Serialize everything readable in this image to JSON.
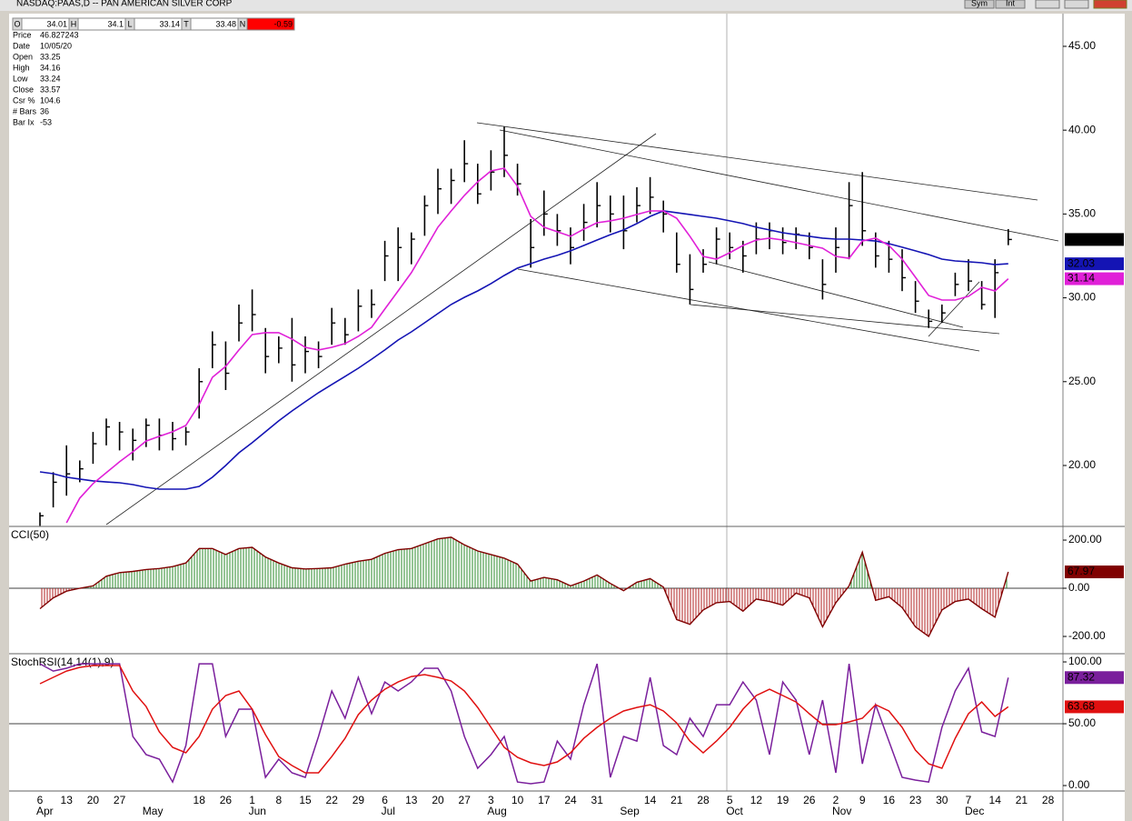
{
  "window": {
    "title": "NASDAQ:PAAS,D -- PAN AMERICAN SILVER CORP",
    "buttons": [
      "Sym",
      "Int"
    ]
  },
  "quote_bar": [
    {
      "label": "O",
      "value": 34.01
    },
    {
      "label": "H",
      "value": 34.1
    },
    {
      "label": "L",
      "value": 33.14
    },
    {
      "label": "T",
      "value": 33.48
    },
    {
      "label": "N",
      "value": -0.59,
      "color": "#ff0000"
    }
  ],
  "info": [
    {
      "label": "Price",
      "value": 46.827243
    },
    {
      "label": "Date",
      "value": "10/05/20"
    },
    {
      "label": "Open",
      "value": 33.25
    },
    {
      "label": "High",
      "value": 34.16
    },
    {
      "label": "Low",
      "value": 33.24
    },
    {
      "label": "Close",
      "value": 33.57
    },
    {
      "label": "Csr %",
      "value": 104.6
    },
    {
      "label": "# Bars",
      "value": 36
    },
    {
      "label": "Bar Ix",
      "value": -53
    }
  ],
  "chart_data": [
    {
      "type": "ohlc",
      "color": "#000000",
      "high": [
        17.2,
        19.6,
        21.2,
        20.3,
        22.0,
        22.8,
        22.6,
        22.2,
        22.8,
        22.8,
        22.6,
        22.3,
        25.8,
        28.0,
        27.4,
        29.6,
        30.5,
        28.2,
        27.7,
        28.8,
        27.7,
        27.4,
        29.4,
        28.8,
        30.5,
        30.5,
        33.4,
        34.2,
        33.9,
        36.1,
        37.7,
        37.7,
        39.4,
        38.0,
        38.8,
        40.2,
        38.0,
        34.7,
        36.4,
        35.0,
        34.2,
        35.6,
        36.9,
        36.1,
        36.1,
        36.6,
        37.2,
        35.8,
        33.9,
        32.6,
        32.9,
        34.2,
        33.9,
        33.4,
        34.5,
        34.5,
        34.2,
        34.2,
        33.9,
        32.3,
        34.2,
        36.9,
        37.5,
        33.9,
        33.4,
        32.9,
        31.0,
        29.3,
        29.6,
        31.5,
        32.3,
        31.0,
        32.3,
        34.1,
        null,
        null,
        null,
        null
      ],
      "low": [
        16.4,
        17.5,
        18.2,
        19.0,
        20.1,
        21.2,
        20.9,
        20.3,
        21.1,
        20.9,
        20.9,
        21.2,
        22.8,
        25.8,
        24.5,
        27.4,
        28.0,
        25.5,
        26.1,
        25.0,
        25.5,
        25.8,
        27.2,
        27.2,
        28.0,
        28.8,
        31.0,
        31.0,
        32.0,
        33.7,
        35.0,
        35.6,
        36.9,
        35.6,
        36.4,
        37.2,
        36.1,
        31.8,
        33.7,
        33.1,
        32.0,
        33.4,
        34.2,
        33.9,
        32.9,
        34.5,
        35.0,
        33.9,
        31.5,
        29.6,
        31.5,
        32.0,
        32.3,
        31.5,
        32.6,
        32.9,
        32.6,
        32.9,
        32.3,
        29.9,
        31.5,
        32.3,
        33.1,
        31.8,
        31.5,
        30.4,
        29.1,
        28.2,
        28.5,
        30.1,
        30.4,
        29.3,
        28.8,
        33.14,
        null,
        null,
        null,
        null
      ],
      "close": [
        17.0,
        19.0,
        19.5,
        19.8,
        21.3,
        22.3,
        22.0,
        21.5,
        22.4,
        21.8,
        21.6,
        22.0,
        25.0,
        27.2,
        25.5,
        28.5,
        29.0,
        26.5,
        27.0,
        26.0,
        26.8,
        26.5,
        28.5,
        27.8,
        29.5,
        29.6,
        32.5,
        33.0,
        33.5,
        35.5,
        36.5,
        37.0,
        38.0,
        36.2,
        37.5,
        38.5,
        36.8,
        33.0,
        35.0,
        34.0,
        33.0,
        34.5,
        35.5,
        35.0,
        34.0,
        35.5,
        36.0,
        35.0,
        32.0,
        30.5,
        32.0,
        33.5,
        33.0,
        32.5,
        33.5,
        34.0,
        33.3,
        33.8,
        33.0,
        30.8,
        33.0,
        35.5,
        34.0,
        32.5,
        32.3,
        31.2,
        29.8,
        28.6,
        29.1,
        30.8,
        31.0,
        29.6,
        31.5,
        33.48,
        null,
        null,
        null,
        null
      ],
      "lines": [
        {
          "color": "#1414b4",
          "values": [
            19.62,
            19.51,
            19.3,
            19.19,
            19.08,
            19.02,
            18.97,
            18.86,
            18.7,
            18.59,
            18.59,
            18.59,
            18.75,
            19.3,
            20.0,
            20.76,
            21.36,
            22.01,
            22.66,
            23.25,
            23.8,
            24.34,
            24.83,
            25.31,
            25.8,
            26.34,
            26.89,
            27.48,
            27.97,
            28.51,
            29.06,
            29.6,
            30.03,
            30.41,
            30.85,
            31.33,
            31.77,
            32.04,
            32.31,
            32.53,
            32.8,
            33.12,
            33.45,
            33.77,
            34.05,
            34.43,
            34.86,
            35.18,
            35.08,
            34.97,
            34.86,
            34.75,
            34.59,
            34.43,
            34.21,
            34.05,
            33.88,
            33.77,
            33.67,
            33.56,
            33.5,
            33.5,
            33.45,
            33.39,
            33.23,
            33.02,
            32.8,
            32.58,
            32.31,
            32.2,
            32.15,
            32.09,
            31.98,
            32.03,
            null,
            null,
            null,
            null
          ]
        },
        {
          "color": "#e020d8",
          "values": [
            null,
            null,
            16.58,
            18.05,
            18.92,
            19.57,
            20.22,
            20.81,
            21.46,
            21.74,
            22.01,
            22.39,
            23.63,
            25.26,
            25.91,
            26.89,
            27.81,
            27.92,
            27.92,
            27.54,
            27.05,
            26.89,
            27.05,
            27.27,
            27.7,
            28.24,
            29.33,
            30.41,
            31.5,
            32.85,
            34.21,
            35.18,
            36.11,
            36.92,
            37.57,
            37.73,
            36.65,
            34.86,
            34.21,
            33.94,
            33.67,
            34.1,
            34.48,
            34.59,
            34.75,
            34.97,
            35.18,
            35.18,
            34.75,
            33.67,
            32.47,
            32.31,
            32.69,
            33.12,
            33.45,
            33.56,
            33.45,
            33.29,
            33.12,
            32.96,
            32.47,
            32.36,
            33.39,
            33.56,
            33.12,
            32.31,
            31.23,
            30.14,
            29.87,
            29.87,
            30.09,
            30.63,
            30.41,
            31.14,
            null,
            null,
            null,
            null
          ]
        }
      ],
      "ylim": [
        16.42,
        46.95
      ],
      "yticks": [
        {
          "value": 20,
          "label": "20.00"
        },
        {
          "value": 25,
          "label": "25.00"
        },
        {
          "value": 30,
          "label": "30.00"
        },
        {
          "value": 35,
          "label": "35.00"
        },
        {
          "value": 40,
          "label": "40.00"
        },
        {
          "value": 45,
          "label": "45.00"
        }
      ]
    },
    {
      "type": "area",
      "title": "CCI(50)",
      "pos_color": "#2e8b2e",
      "neg_color": "#b22222",
      "line_color": "#800000",
      "values": [
        -85,
        -40,
        -12,
        0,
        10,
        50,
        65,
        70,
        78,
        82,
        90,
        105,
        165,
        165,
        140,
        165,
        170,
        130,
        105,
        85,
        80,
        82,
        85,
        100,
        112,
        120,
        145,
        160,
        165,
        185,
        205,
        212,
        180,
        155,
        140,
        125,
        100,
        30,
        45,
        35,
        10,
        30,
        55,
        20,
        -10,
        25,
        40,
        5,
        -130,
        -150,
        -90,
        -60,
        -55,
        -95,
        -45,
        -55,
        -70,
        -20,
        -40,
        -160,
        -60,
        10,
        150,
        -50,
        -35,
        -80,
        -160,
        -200,
        -90,
        -55,
        -45,
        -85,
        -120,
        67.97,
        null,
        null,
        null,
        null
      ],
      "ylim": [
        -268,
        253
      ],
      "hline": 0,
      "yticks": [
        {
          "value": -200,
          "label": "-200.00"
        },
        {
          "value": 0,
          "label": "0.00"
        },
        {
          "value": 200,
          "label": "200.00"
        }
      ]
    },
    {
      "type": "line",
      "title": "StochRSI(14,14(1),9)",
      "categories": [
        "6",
        null,
        "13",
        null,
        "20",
        null,
        "27",
        null,
        null,
        null,
        null,
        null,
        "18",
        null,
        "26",
        null,
        "1",
        null,
        "8",
        null,
        "15",
        null,
        "22",
        null,
        "29",
        null,
        "6",
        null,
        "13",
        null,
        "20",
        null,
        "27",
        null,
        "3",
        null,
        "10",
        null,
        "17",
        null,
        "24",
        null,
        "31",
        null,
        null,
        null,
        "14",
        null,
        "21",
        null,
        "28",
        null,
        "5",
        null,
        "12",
        null,
        "19",
        null,
        "26",
        null,
        "2",
        null,
        "9",
        null,
        "16",
        null,
        "23",
        null,
        "30",
        null,
        "7",
        null,
        "14",
        null,
        "21",
        null,
        "28",
        null
      ],
      "months": [
        "Apr",
        null,
        null,
        null,
        null,
        null,
        null,
        null,
        "May",
        null,
        null,
        null,
        null,
        null,
        null,
        null,
        "Jun",
        null,
        null,
        null,
        null,
        null,
        null,
        null,
        null,
        null,
        "Jul",
        null,
        null,
        null,
        null,
        null,
        null,
        null,
        "Aug",
        null,
        null,
        null,
        null,
        null,
        null,
        null,
        null,
        null,
        "Sep",
        null,
        null,
        null,
        null,
        null,
        null,
        null,
        "Oct",
        null,
        null,
        null,
        null,
        null,
        null,
        null,
        "Nov",
        null,
        null,
        null,
        null,
        null,
        null,
        null,
        null,
        null,
        "Dec",
        null,
        null,
        null,
        null,
        null,
        null,
        null
      ],
      "series": [
        {
          "color": "#7a1f9c",
          "values": [
            98.5,
            92.6,
            94.9,
            98.5,
            98.5,
            98.5,
            98.5,
            39.7,
            25,
            21.3,
            2.9,
            32.4,
            98.5,
            98.5,
            39.7,
            61.8,
            61.8,
            6.6,
            21.3,
            10.3,
            6.6,
            39.7,
            76.5,
            54.4,
            87.5,
            58.1,
            83.8,
            76.5,
            83.8,
            94.9,
            94.9,
            76.5,
            39.7,
            14.0,
            25,
            39.7,
            2.9,
            1.5,
            2.9,
            36.0,
            21.3,
            65.4,
            98.5,
            6.6,
            39.7,
            36.0,
            87.5,
            32.4,
            25,
            54.4,
            39.7,
            65.4,
            65.4,
            83.8,
            69.1,
            25,
            83.8,
            69.1,
            25,
            69.1,
            10.3,
            98.5,
            17.6,
            65.4,
            36.0,
            6.6,
            4.4,
            2.9,
            47.1,
            76.5,
            94.9,
            43.4,
            39.7,
            87.32,
            null,
            null,
            null,
            null
          ]
        },
        {
          "color": "#e01010",
          "values": [
            82.4,
            87.5,
            92.6,
            95.6,
            97.1,
            97.1,
            97.1,
            76.5,
            64.0,
            43.4,
            30.9,
            26.5,
            39.7,
            61.8,
            72.8,
            76.5,
            61.8,
            41.2,
            23.5,
            16.2,
            10.3,
            10.3,
            23.5,
            38.2,
            57.4,
            69.1,
            77.9,
            83.8,
            88.2,
            89.7,
            87.5,
            84.6,
            76.5,
            63.2,
            47.1,
            30.9,
            22.8,
            18.4,
            16.2,
            19.1,
            26.5,
            38.2,
            47.1,
            54.4,
            60.3,
            63.2,
            65.4,
            60.3,
            50.7,
            36.0,
            26.5,
            36.0,
            47.1,
            61.8,
            72.8,
            77.9,
            72.8,
            67.6,
            58.1,
            49.3,
            49.3,
            51.5,
            54.4,
            65.4,
            60.3,
            47.1,
            28.7,
            17.6,
            14.0,
            38.2,
            58.1,
            67.6,
            55.9,
            63.68,
            null,
            null,
            null,
            null
          ]
        }
      ],
      "ylim": [
        -4.4,
        105.9
      ],
      "hline": 50,
      "yticks": [
        {
          "value": 0,
          "label": "0.00"
        },
        {
          "value": 50,
          "label": "50.00"
        },
        {
          "value": 100,
          "label": "100.00"
        }
      ]
    }
  ]
}
